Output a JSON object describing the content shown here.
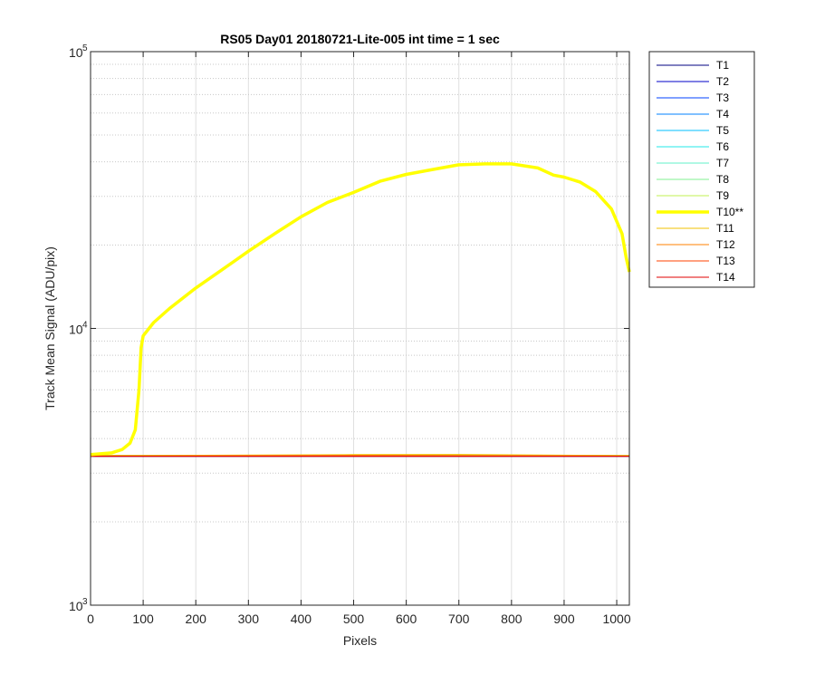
{
  "chart_data": {
    "type": "line",
    "title": "RS05 Day01 20180721-Lite-005 int time = 1 sec",
    "xlabel": "Pixels",
    "ylabel": "Track Mean Signal (ADU/pix)",
    "xlim": [
      0,
      1024
    ],
    "ylim": [
      1000,
      100000
    ],
    "yscale": "log",
    "grid": true,
    "legend_position": "outside-top-right",
    "x_ticks": [
      0,
      100,
      200,
      300,
      400,
      500,
      600,
      700,
      800,
      900,
      1000
    ],
    "y_ticks": [
      {
        "value": 1000,
        "base": "10",
        "exp": "3"
      },
      {
        "value": 10000,
        "base": "10",
        "exp": "4"
      },
      {
        "value": 100000,
        "base": "10",
        "exp": "5"
      }
    ],
    "series": [
      {
        "name": "T1",
        "color": "#000080",
        "width": 1,
        "x": [
          0,
          1024
        ],
        "y": [
          3450,
          3450
        ]
      },
      {
        "name": "T2",
        "color": "#0000c8",
        "width": 1,
        "x": [
          0,
          1024
        ],
        "y": [
          3455,
          3455
        ]
      },
      {
        "name": "T3",
        "color": "#0040ff",
        "width": 1,
        "x": [
          0,
          1024
        ],
        "y": [
          3460,
          3460
        ]
      },
      {
        "name": "T4",
        "color": "#0080ff",
        "width": 1,
        "x": [
          0,
          1024
        ],
        "y": [
          3460,
          3460
        ]
      },
      {
        "name": "T5",
        "color": "#00bfff",
        "width": 1,
        "x": [
          0,
          1024
        ],
        "y": [
          3465,
          3465
        ]
      },
      {
        "name": "T6",
        "color": "#20e8e8",
        "width": 1,
        "x": [
          0,
          1024
        ],
        "y": [
          3465,
          3465
        ]
      },
      {
        "name": "T7",
        "color": "#60f0c8",
        "width": 1,
        "x": [
          0,
          1024
        ],
        "y": [
          3470,
          3470
        ]
      },
      {
        "name": "T8",
        "color": "#80f090",
        "width": 1,
        "x": [
          0,
          1024
        ],
        "y": [
          3470,
          3470
        ]
      },
      {
        "name": "T9",
        "color": "#c0f050",
        "width": 1,
        "x": [
          0,
          1024
        ],
        "y": [
          3475,
          3475
        ]
      },
      {
        "name": "T10**",
        "color": "#ffff00",
        "width": 3.5,
        "x": [
          0,
          40,
          60,
          75,
          85,
          92,
          96,
          100,
          120,
          150,
          200,
          250,
          300,
          350,
          400,
          450,
          500,
          550,
          600,
          650,
          700,
          750,
          800,
          850,
          880,
          900,
          930,
          960,
          990,
          1010,
          1018,
          1024
        ],
        "y": [
          3500,
          3550,
          3650,
          3850,
          4300,
          6000,
          8500,
          9400,
          10500,
          11800,
          14000,
          16300,
          19000,
          22000,
          25300,
          28500,
          31000,
          34000,
          36000,
          37500,
          39000,
          39300,
          39300,
          38000,
          35800,
          35200,
          33800,
          31200,
          27000,
          22000,
          18000,
          16000
        ]
      },
      {
        "name": "T11",
        "color": "#f0c000",
        "width": 1,
        "x": [
          0,
          100,
          500,
          700,
          1024
        ],
        "y": [
          3470,
          3475,
          3500,
          3505,
          3470
        ]
      },
      {
        "name": "T12",
        "color": "#ff8000",
        "width": 1,
        "x": [
          0,
          500,
          1024
        ],
        "y": [
          3460,
          3480,
          3460
        ]
      },
      {
        "name": "T13",
        "color": "#ff4000",
        "width": 1,
        "x": [
          0,
          1024
        ],
        "y": [
          3455,
          3455
        ]
      },
      {
        "name": "T14",
        "color": "#e00000",
        "width": 1,
        "x": [
          0,
          1024
        ],
        "y": [
          3450,
          3450
        ]
      }
    ]
  }
}
